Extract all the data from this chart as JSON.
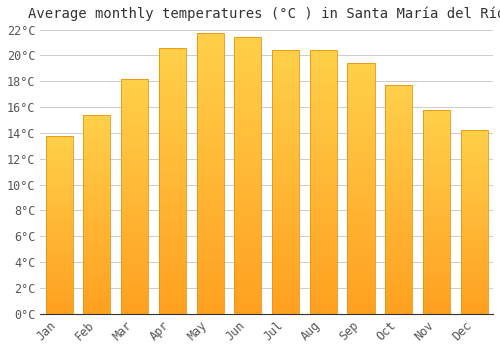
{
  "title": "Average monthly temperatures (°C ) in Santa María del Río",
  "months": [
    "Jan",
    "Feb",
    "Mar",
    "Apr",
    "May",
    "Jun",
    "Jul",
    "Aug",
    "Sep",
    "Oct",
    "Nov",
    "Dec"
  ],
  "values": [
    13.8,
    15.4,
    18.2,
    20.6,
    21.7,
    21.4,
    20.4,
    20.4,
    19.4,
    17.7,
    15.8,
    14.2
  ],
  "bar_color_top": "#FFD04B",
  "bar_color_bottom": "#FFA020",
  "bar_edge_color": "#E8950A",
  "background_color": "#FFFFFF",
  "grid_color": "#CCCCCC",
  "ylim": [
    0,
    22
  ],
  "ytick_step": 2,
  "title_fontsize": 10,
  "tick_fontsize": 8.5,
  "font_family": "monospace"
}
